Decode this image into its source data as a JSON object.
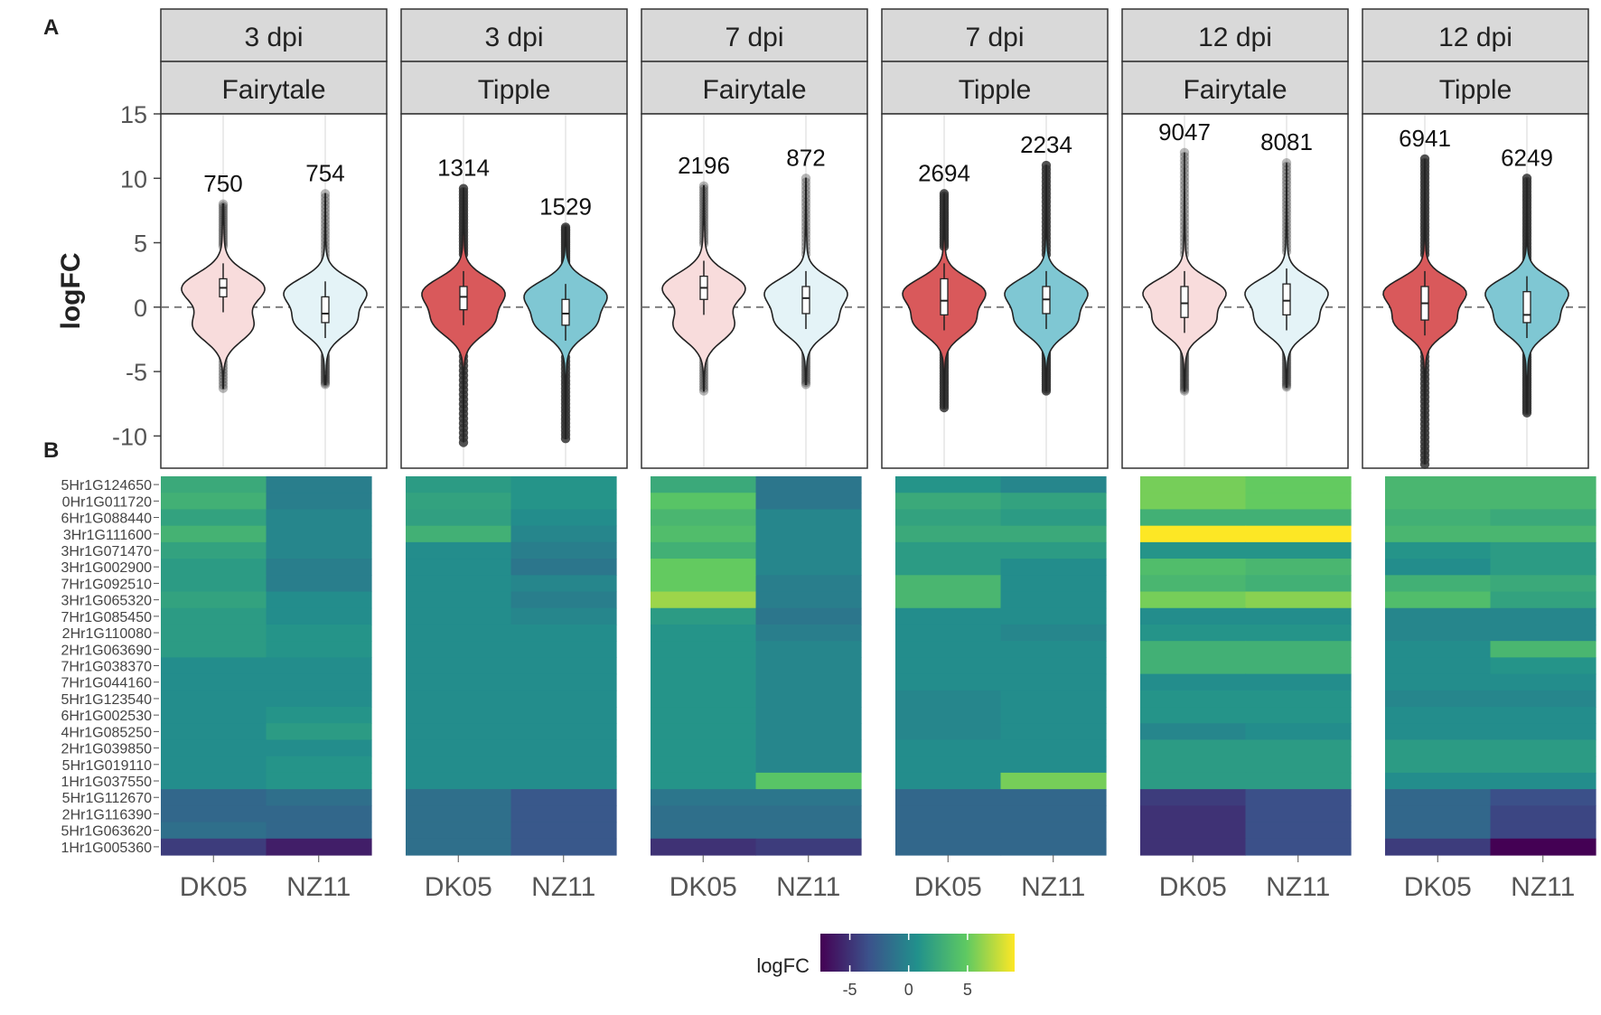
{
  "chart_data": [
    {
      "type": "violin",
      "panel_label": "A",
      "ylabel": "logFC",
      "ylim": [
        -12.5,
        15.0
      ],
      "yticks": [
        -10,
        -5,
        0,
        5,
        10,
        15
      ],
      "reference_line": 0,
      "facets": [
        {
          "top": "3 dpi",
          "bottom": "Fairytale",
          "theme": "light",
          "groups": [
            {
              "name": "DK05",
              "count": 750,
              "median": 1.5,
              "q1": 0.8,
              "q3": 2.2,
              "min": -6.3,
              "max": 8.0,
              "modes": [
                1.5,
                -1.5
              ]
            },
            {
              "name": "NZ11",
              "count": 754,
              "median": -0.5,
              "q1": -1.2,
              "q3": 0.8,
              "min": -6.0,
              "max": 8.8,
              "modes": [
                1.2,
                -1.2
              ]
            }
          ]
        },
        {
          "top": "3 dpi",
          "bottom": "Tipple",
          "theme": "dark",
          "groups": [
            {
              "name": "DK05",
              "count": 1314,
              "median": 0.8,
              "q1": -0.2,
              "q3": 1.6,
              "min": -10.5,
              "max": 9.2,
              "modes": [
                1.2,
                -1.2
              ]
            },
            {
              "name": "NZ11",
              "count": 1529,
              "median": -0.5,
              "q1": -1.4,
              "q3": 0.6,
              "min": -10.2,
              "max": 6.2,
              "modes": [
                1.0,
                -1.3
              ]
            }
          ]
        },
        {
          "top": "7 dpi",
          "bottom": "Fairytale",
          "theme": "light",
          "groups": [
            {
              "name": "DK05",
              "count": 2196,
              "median": 1.5,
              "q1": 0.6,
              "q3": 2.4,
              "min": -6.5,
              "max": 9.4,
              "modes": [
                1.5,
                -1.5
              ]
            },
            {
              "name": "NZ11",
              "count": 872,
              "median": 0.7,
              "q1": -0.5,
              "q3": 1.6,
              "min": -6.0,
              "max": 10.0,
              "modes": [
                1.2,
                -1.2
              ]
            }
          ]
        },
        {
          "top": "7 dpi",
          "bottom": "Tipple",
          "theme": "dark",
          "groups": [
            {
              "name": "DK05",
              "count": 2694,
              "median": 0.5,
              "q1": -0.6,
              "q3": 2.2,
              "min": -7.8,
              "max": 8.8,
              "modes": [
                1.2,
                -1.2
              ]
            },
            {
              "name": "NZ11",
              "count": 2234,
              "median": 0.6,
              "q1": -0.5,
              "q3": 1.6,
              "min": -6.5,
              "max": 11.0,
              "modes": [
                1.2,
                -1.2
              ]
            }
          ]
        },
        {
          "top": "12 dpi",
          "bottom": "Fairytale",
          "theme": "light",
          "groups": [
            {
              "name": "DK05",
              "count": 9047,
              "median": 0.3,
              "q1": -0.8,
              "q3": 1.6,
              "min": -6.5,
              "max": 12.0,
              "modes": [
                1.2,
                -1.2
              ]
            },
            {
              "name": "NZ11",
              "count": 8081,
              "median": 0.5,
              "q1": -0.6,
              "q3": 1.8,
              "min": -6.2,
              "max": 11.2,
              "modes": [
                1.2,
                -1.2
              ]
            }
          ]
        },
        {
          "top": "12 dpi",
          "bottom": "Tipple",
          "theme": "dark",
          "groups": [
            {
              "name": "DK05",
              "count": 6941,
              "median": 0.3,
              "q1": -1.0,
              "q3": 1.6,
              "min": -12.2,
              "max": 11.5,
              "modes": [
                1.2,
                -1.2
              ]
            },
            {
              "name": "NZ11",
              "count": 6249,
              "median": -0.6,
              "q1": -1.2,
              "q3": 1.2,
              "min": -8.2,
              "max": 10.0,
              "modes": [
                1.2,
                -1.2
              ]
            }
          ]
        }
      ],
      "colors": {
        "dk05_light": "#f8dcdc",
        "nz11_light": "#e4f3f7",
        "dk05_dark": "#d9595b",
        "nz11_dark": "#7fc7d3",
        "outline": "#222222",
        "points": "#333333"
      }
    },
    {
      "type": "heatmap",
      "panel_label": "B",
      "row_labels": [
        "5Hr1G124650",
        "0Hr1G011720",
        "6Hr1G088440",
        "3Hr1G111600",
        "3Hr1G071470",
        "3Hr1G002900",
        "7Hr1G092510",
        "3Hr1G065320",
        "7Hr1G085450",
        "2Hr1G110080",
        "2Hr1G063690",
        "7Hr1G038370",
        "7Hr1G044160",
        "5Hr1G123540",
        "6Hr1G002530",
        "4Hr1G085250",
        "2Hr1G039850",
        "5Hr1G019110",
        "1Hr1G037550",
        "5Hr1G112670",
        "2Hr1G116390",
        "5Hr1G063620",
        "1Hr1G005360"
      ],
      "column_labels": [
        "DK05",
        "NZ11"
      ],
      "panels": [
        {
          "name": "3 dpi Fairytale",
          "values": [
            [
              2.5,
              -0.5
            ],
            [
              3.0,
              -0.5
            ],
            [
              2.0,
              0.0
            ],
            [
              3.2,
              0.0
            ],
            [
              2.0,
              0.0
            ],
            [
              1.5,
              -0.5
            ],
            [
              1.5,
              -0.5
            ],
            [
              2.0,
              0.5
            ],
            [
              1.5,
              0.5
            ],
            [
              1.5,
              1.0
            ],
            [
              1.5,
              1.0
            ],
            [
              0.5,
              0.5
            ],
            [
              0.5,
              0.5
            ],
            [
              0.5,
              0.5
            ],
            [
              0.5,
              1.0
            ],
            [
              0.5,
              1.5
            ],
            [
              0.5,
              0.5
            ],
            [
              0.5,
              1.0
            ],
            [
              0.5,
              1.0
            ],
            [
              -2.0,
              -1.5
            ],
            [
              -2.0,
              -2.0
            ],
            [
              -1.5,
              -2.0
            ],
            [
              -4.5,
              -6.0
            ]
          ]
        },
        {
          "name": "3 dpi Tipple",
          "values": [
            [
              1.5,
              1.0
            ],
            [
              2.0,
              1.0
            ],
            [
              1.8,
              0.5
            ],
            [
              3.0,
              0.0
            ],
            [
              0.5,
              -0.5
            ],
            [
              0.5,
              -1.0
            ],
            [
              0.5,
              0.0
            ],
            [
              0.5,
              -0.5
            ],
            [
              0.5,
              0.0
            ],
            [
              0.5,
              0.5
            ],
            [
              0.5,
              0.5
            ],
            [
              0.5,
              0.5
            ],
            [
              0.5,
              0.5
            ],
            [
              0.5,
              0.5
            ],
            [
              0.5,
              0.5
            ],
            [
              0.5,
              0.5
            ],
            [
              0.5,
              0.5
            ],
            [
              0.5,
              0.5
            ],
            [
              0.5,
              0.5
            ],
            [
              -1.5,
              -3.0
            ],
            [
              -1.5,
              -3.0
            ],
            [
              -1.5,
              -3.0
            ],
            [
              -1.5,
              -3.0
            ]
          ]
        },
        {
          "name": "7 dpi Fairytale",
          "values": [
            [
              2.5,
              -1.0
            ],
            [
              4.5,
              -1.0
            ],
            [
              3.5,
              0.0
            ],
            [
              4.0,
              0.0
            ],
            [
              3.0,
              0.0
            ],
            [
              5.0,
              0.0
            ],
            [
              5.0,
              -0.5
            ],
            [
              6.5,
              -0.5
            ],
            [
              1.5,
              -1.0
            ],
            [
              1.0,
              -0.5
            ],
            [
              1.0,
              0.0
            ],
            [
              1.0,
              0.0
            ],
            [
              1.0,
              0.0
            ],
            [
              1.0,
              0.0
            ],
            [
              1.0,
              0.0
            ],
            [
              1.0,
              0.0
            ],
            [
              1.0,
              0.0
            ],
            [
              1.0,
              0.0
            ],
            [
              1.0,
              4.5
            ],
            [
              -1.0,
              -1.0
            ],
            [
              -1.5,
              -1.5
            ],
            [
              -1.5,
              -1.5
            ],
            [
              -5.0,
              -4.5
            ]
          ]
        },
        {
          "name": "7 dpi Tipple",
          "values": [
            [
              1.0,
              0.0
            ],
            [
              2.5,
              2.0
            ],
            [
              2.0,
              1.5
            ],
            [
              2.5,
              2.5
            ],
            [
              1.5,
              1.5
            ],
            [
              1.5,
              0.5
            ],
            [
              3.5,
              0.5
            ],
            [
              3.5,
              0.5
            ],
            [
              0.5,
              0.5
            ],
            [
              0.5,
              0.0
            ],
            [
              0.5,
              0.5
            ],
            [
              0.5,
              0.5
            ],
            [
              0.5,
              0.5
            ],
            [
              0.0,
              0.5
            ],
            [
              0.0,
              0.5
            ],
            [
              0.0,
              0.5
            ],
            [
              0.5,
              0.5
            ],
            [
              0.5,
              0.5
            ],
            [
              0.5,
              5.5
            ],
            [
              -2.0,
              -2.0
            ],
            [
              -2.0,
              -2.0
            ],
            [
              -2.0,
              -2.0
            ],
            [
              -2.0,
              -2.0
            ]
          ]
        },
        {
          "name": "12 dpi Fairytale",
          "values": [
            [
              5.5,
              5.0
            ],
            [
              5.5,
              5.0
            ],
            [
              3.0,
              3.0
            ],
            [
              9.0,
              9.0
            ],
            [
              1.0,
              1.0
            ],
            [
              4.0,
              3.5
            ],
            [
              3.5,
              3.0
            ],
            [
              5.5,
              6.0
            ],
            [
              0.5,
              0.5
            ],
            [
              1.0,
              1.0
            ],
            [
              3.0,
              3.0
            ],
            [
              3.0,
              3.0
            ],
            [
              0.5,
              0.5
            ],
            [
              1.0,
              1.0
            ],
            [
              1.0,
              1.0
            ],
            [
              0.0,
              0.5
            ],
            [
              1.5,
              1.5
            ],
            [
              1.5,
              1.5
            ],
            [
              1.5,
              1.5
            ],
            [
              -4.5,
              -3.5
            ],
            [
              -5.0,
              -3.5
            ],
            [
              -5.0,
              -3.5
            ],
            [
              -5.0,
              -3.5
            ]
          ]
        },
        {
          "name": "12 dpi Tipple",
          "values": [
            [
              3.5,
              3.5
            ],
            [
              3.5,
              3.5
            ],
            [
              3.0,
              2.5
            ],
            [
              3.5,
              3.5
            ],
            [
              1.0,
              1.5
            ],
            [
              0.5,
              1.5
            ],
            [
              3.0,
              2.5
            ],
            [
              4.0,
              2.0
            ],
            [
              0.0,
              0.0
            ],
            [
              0.0,
              0.0
            ],
            [
              0.5,
              3.5
            ],
            [
              0.5,
              1.0
            ],
            [
              0.5,
              0.5
            ],
            [
              0.0,
              0.0
            ],
            [
              0.5,
              0.5
            ],
            [
              0.5,
              0.5
            ],
            [
              1.5,
              1.5
            ],
            [
              1.5,
              1.5
            ],
            [
              0.5,
              0.5
            ],
            [
              -2.0,
              -3.5
            ],
            [
              -2.0,
              -4.0
            ],
            [
              -2.0,
              -4.0
            ],
            [
              -4.5,
              -7.5
            ]
          ]
        }
      ],
      "colorbar": {
        "label": "logFC",
        "min": -7.5,
        "max": 9.0,
        "ticks": [
          -5,
          0,
          5
        ]
      }
    }
  ]
}
